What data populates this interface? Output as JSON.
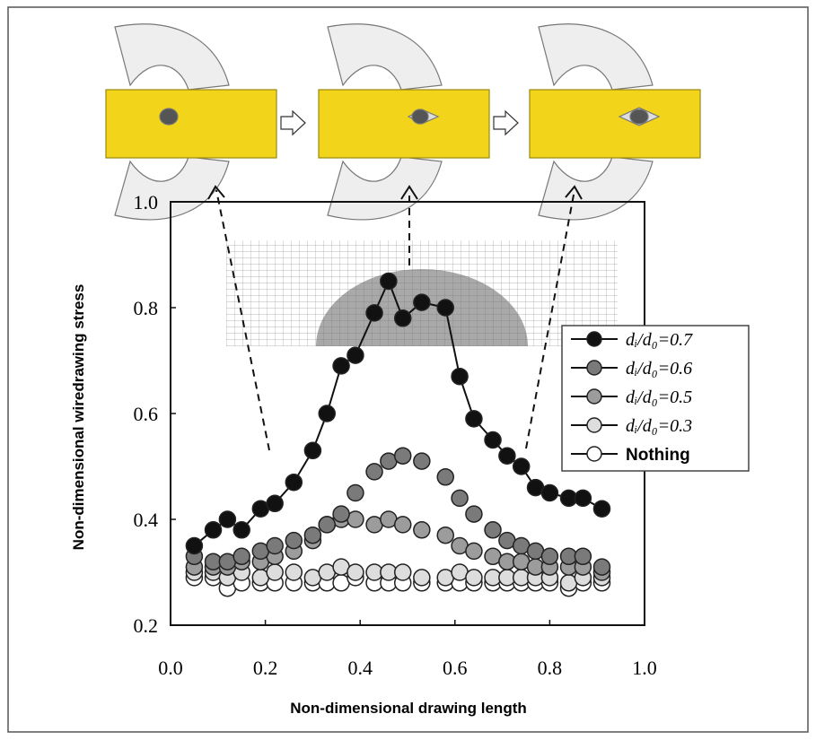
{
  "chart_data": {
    "type": "scatter",
    "x_label": "Non-dimensional drawing length",
    "y_label": "Non-dimensional wiredrawing stress",
    "xlim": [
      0,
      1
    ],
    "ylim": [
      0.2,
      1
    ],
    "xticks": [
      {
        "value": 0,
        "label": "0.0"
      },
      0.2,
      0.4,
      0.6,
      0.8,
      {
        "value": 1,
        "label": "1.0"
      }
    ],
    "yticks": [
      0.2,
      0.4,
      0.6,
      0.8,
      {
        "value": 1,
        "label": "1.0"
      }
    ],
    "x": [
      0.05,
      0.09,
      0.12,
      0.15,
      0.19,
      0.22,
      0.26,
      0.3,
      0.33,
      0.36,
      0.39,
      0.43,
      0.46,
      0.49,
      0.53,
      0.58,
      0.61,
      0.64,
      0.68,
      0.71,
      0.74,
      0.77,
      0.8,
      0.84,
      0.87,
      0.91
    ],
    "series": [
      {
        "name": "dᵢ/d₀=0.7",
        "color": "#111111",
        "line": true,
        "values": [
          0.35,
          0.38,
          0.4,
          0.38,
          0.42,
          0.43,
          0.47,
          0.53,
          0.6,
          0.69,
          0.71,
          0.79,
          0.85,
          0.78,
          0.81,
          0.8,
          0.67,
          0.59,
          0.55,
          0.52,
          0.5,
          0.46,
          0.45,
          0.44,
          0.44,
          0.42
        ]
      },
      {
        "name": "dᵢ/d₀=0.6",
        "color": "#7a7a7a",
        "line": false,
        "values": [
          0.33,
          0.32,
          0.32,
          0.33,
          0.34,
          0.35,
          0.36,
          0.37,
          0.39,
          0.41,
          0.45,
          0.49,
          0.51,
          0.52,
          0.51,
          0.48,
          0.44,
          0.41,
          0.38,
          0.36,
          0.35,
          0.34,
          0.33,
          0.33,
          0.33,
          0.31
        ]
      },
      {
        "name": "dᵢ/d₀=0.5",
        "color": "#9c9c9c",
        "line": false,
        "values": [
          0.31,
          0.31,
          0.31,
          0.32,
          0.32,
          0.33,
          0.34,
          0.36,
          0.39,
          0.4,
          0.4,
          0.39,
          0.4,
          0.39,
          0.38,
          0.37,
          0.35,
          0.34,
          0.33,
          0.32,
          0.32,
          0.31,
          0.31,
          0.31,
          0.31,
          0.3
        ]
      },
      {
        "name": "dᵢ/d₀=0.3",
        "color": "#dddddd",
        "line": false,
        "values": [
          0.3,
          0.3,
          0.29,
          0.3,
          0.29,
          0.3,
          0.3,
          0.29,
          0.3,
          0.31,
          0.3,
          0.3,
          0.3,
          0.3,
          0.29,
          0.29,
          0.3,
          0.29,
          0.29,
          0.29,
          0.29,
          0.29,
          0.29,
          0.28,
          0.29,
          0.29
        ]
      },
      {
        "name": "Nothing",
        "color": "#ffffff",
        "line": false,
        "values": [
          0.29,
          0.29,
          0.27,
          0.28,
          0.28,
          0.28,
          0.28,
          0.28,
          0.28,
          0.28,
          0.29,
          0.28,
          0.28,
          0.28,
          0.28,
          0.28,
          0.28,
          0.28,
          0.28,
          0.28,
          0.28,
          0.28,
          0.28,
          0.27,
          0.28,
          0.28
        ]
      }
    ]
  }
}
